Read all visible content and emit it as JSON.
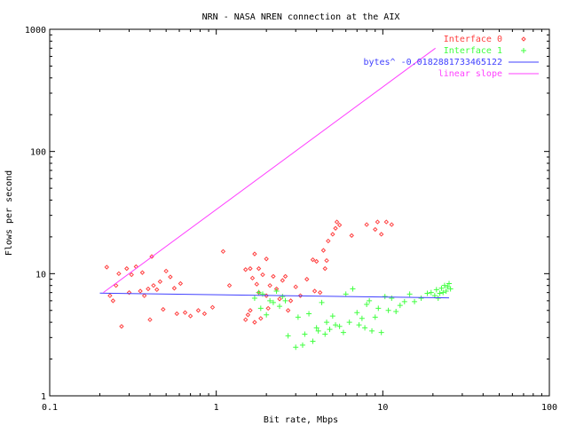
{
  "chart_data": {
    "type": "scatter",
    "title": "NRN - NASA NREN connection at the AIX",
    "xlabel": "Bit rate, Mbps",
    "ylabel": "Flows per second",
    "x_scale": "log",
    "y_scale": "log",
    "xlim": [
      0.1,
      100
    ],
    "ylim": [
      1,
      1000
    ],
    "x_ticks": [
      "0.1",
      "1",
      "10",
      "100"
    ],
    "y_ticks": [
      "1",
      "10",
      "100",
      "1000"
    ],
    "legend_position": "top-right",
    "grid": false,
    "series": [
      {
        "name": "Interface 0",
        "marker": "diamond",
        "color": "#ff4040",
        "points": [
          [
            0.22,
            11.3
          ],
          [
            0.23,
            6.6
          ],
          [
            0.24,
            6.0
          ],
          [
            0.25,
            8.0
          ],
          [
            0.26,
            10.0
          ],
          [
            0.27,
            3.7
          ],
          [
            0.29,
            11.0
          ],
          [
            0.3,
            7.0
          ],
          [
            0.31,
            9.8
          ],
          [
            0.33,
            11.4
          ],
          [
            0.35,
            7.2
          ],
          [
            0.36,
            10.2
          ],
          [
            0.37,
            6.6
          ],
          [
            0.39,
            7.5
          ],
          [
            0.4,
            4.2
          ],
          [
            0.41,
            13.8
          ],
          [
            0.42,
            8.0
          ],
          [
            0.44,
            7.4
          ],
          [
            0.46,
            8.6
          ],
          [
            0.48,
            5.1
          ],
          [
            0.5,
            10.5
          ],
          [
            0.53,
            9.4
          ],
          [
            0.56,
            7.6
          ],
          [
            0.58,
            4.7
          ],
          [
            0.61,
            8.3
          ],
          [
            0.65,
            4.8
          ],
          [
            0.7,
            4.5
          ],
          [
            0.78,
            5.0
          ],
          [
            0.85,
            4.7
          ],
          [
            0.95,
            5.3
          ],
          [
            1.1,
            15.2
          ],
          [
            1.2,
            8.0
          ],
          [
            1.5,
            4.2
          ],
          [
            1.5,
            10.8
          ],
          [
            1.55,
            4.6
          ],
          [
            1.6,
            11.0
          ],
          [
            1.6,
            5.0
          ],
          [
            1.65,
            9.2
          ],
          [
            1.7,
            14.5
          ],
          [
            1.7,
            4.0
          ],
          [
            1.75,
            8.2
          ],
          [
            1.8,
            11.0
          ],
          [
            1.8,
            7.0
          ],
          [
            1.85,
            4.3
          ],
          [
            1.9,
            9.8
          ],
          [
            2.0,
            6.6
          ],
          [
            2.0,
            13.2
          ],
          [
            2.05,
            5.2
          ],
          [
            2.1,
            8.0
          ],
          [
            2.2,
            9.5
          ],
          [
            2.3,
            7.5
          ],
          [
            2.4,
            6.2
          ],
          [
            2.5,
            8.8
          ],
          [
            2.6,
            9.5
          ],
          [
            2.7,
            5.0
          ],
          [
            2.8,
            6.0
          ],
          [
            3.0,
            7.8
          ],
          [
            3.2,
            6.6
          ],
          [
            3.5,
            9.0
          ],
          [
            3.8,
            13.0
          ],
          [
            3.9,
            7.2
          ],
          [
            4.0,
            12.6
          ],
          [
            4.2,
            7.0
          ],
          [
            4.4,
            15.5
          ],
          [
            4.5,
            11.0
          ],
          [
            4.6,
            12.8
          ],
          [
            4.7,
            18.5
          ],
          [
            5.0,
            21.0
          ],
          [
            5.2,
            23.5
          ],
          [
            5.3,
            26.5
          ],
          [
            5.5,
            25.0
          ],
          [
            6.5,
            20.5
          ],
          [
            8.0,
            25.2
          ],
          [
            9.0,
            23.0
          ],
          [
            9.3,
            26.5
          ],
          [
            9.8,
            21.0
          ],
          [
            10.5,
            26.5
          ],
          [
            11.3,
            25.2
          ]
        ]
      },
      {
        "name": "Interface 1",
        "marker": "plus",
        "color": "#40ff40",
        "points": [
          [
            1.7,
            6.3
          ],
          [
            1.8,
            7.0
          ],
          [
            1.85,
            5.2
          ],
          [
            1.9,
            6.8
          ],
          [
            2.0,
            4.6
          ],
          [
            2.1,
            6.0
          ],
          [
            2.2,
            5.8
          ],
          [
            2.3,
            7.2
          ],
          [
            2.4,
            5.4
          ],
          [
            2.5,
            6.5
          ],
          [
            2.6,
            6.0
          ],
          [
            2.7,
            3.1
          ],
          [
            3.0,
            2.5
          ],
          [
            3.1,
            4.4
          ],
          [
            3.3,
            2.6
          ],
          [
            3.4,
            3.2
          ],
          [
            3.6,
            4.7
          ],
          [
            3.8,
            2.8
          ],
          [
            4.0,
            3.6
          ],
          [
            4.1,
            3.4
          ],
          [
            4.3,
            5.8
          ],
          [
            4.5,
            3.2
          ],
          [
            4.6,
            4.0
          ],
          [
            4.8,
            3.5
          ],
          [
            5.0,
            4.5
          ],
          [
            5.2,
            3.8
          ],
          [
            5.5,
            3.7
          ],
          [
            5.8,
            3.3
          ],
          [
            6.0,
            6.8
          ],
          [
            6.3,
            4.0
          ],
          [
            6.6,
            7.5
          ],
          [
            7.0,
            4.8
          ],
          [
            7.2,
            3.8
          ],
          [
            7.5,
            4.3
          ],
          [
            7.8,
            3.6
          ],
          [
            8.0,
            5.6
          ],
          [
            8.3,
            6.0
          ],
          [
            8.6,
            3.4
          ],
          [
            9.0,
            4.4
          ],
          [
            9.4,
            5.2
          ],
          [
            9.8,
            3.3
          ],
          [
            10.3,
            6.5
          ],
          [
            10.8,
            5.0
          ],
          [
            11.3,
            6.3
          ],
          [
            12.0,
            4.9
          ],
          [
            12.7,
            5.5
          ],
          [
            13.5,
            5.9
          ],
          [
            14.5,
            6.8
          ],
          [
            15.5,
            5.9
          ],
          [
            17.0,
            6.3
          ],
          [
            18.5,
            6.9
          ],
          [
            19.5,
            7.0
          ],
          [
            20.5,
            6.6
          ],
          [
            21.0,
            7.4
          ],
          [
            21.5,
            6.3
          ],
          [
            22.0,
            6.9
          ],
          [
            22.5,
            7.6
          ],
          [
            23.0,
            7.0
          ],
          [
            23.5,
            8.0
          ],
          [
            24.0,
            7.2
          ],
          [
            24.5,
            7.8
          ],
          [
            25.0,
            8.3
          ],
          [
            25.5,
            7.5
          ]
        ]
      },
      {
        "name": "bytes^ -0.0182881733465122",
        "style": "line",
        "color": "#4040ff",
        "points": [
          [
            0.2,
            6.93
          ],
          [
            25,
            6.33
          ]
        ]
      },
      {
        "name": "linear slope",
        "style": "line",
        "color": "#ff40ff",
        "points": [
          [
            0.21,
            7.0
          ],
          [
            20.7,
            700
          ]
        ]
      }
    ]
  }
}
